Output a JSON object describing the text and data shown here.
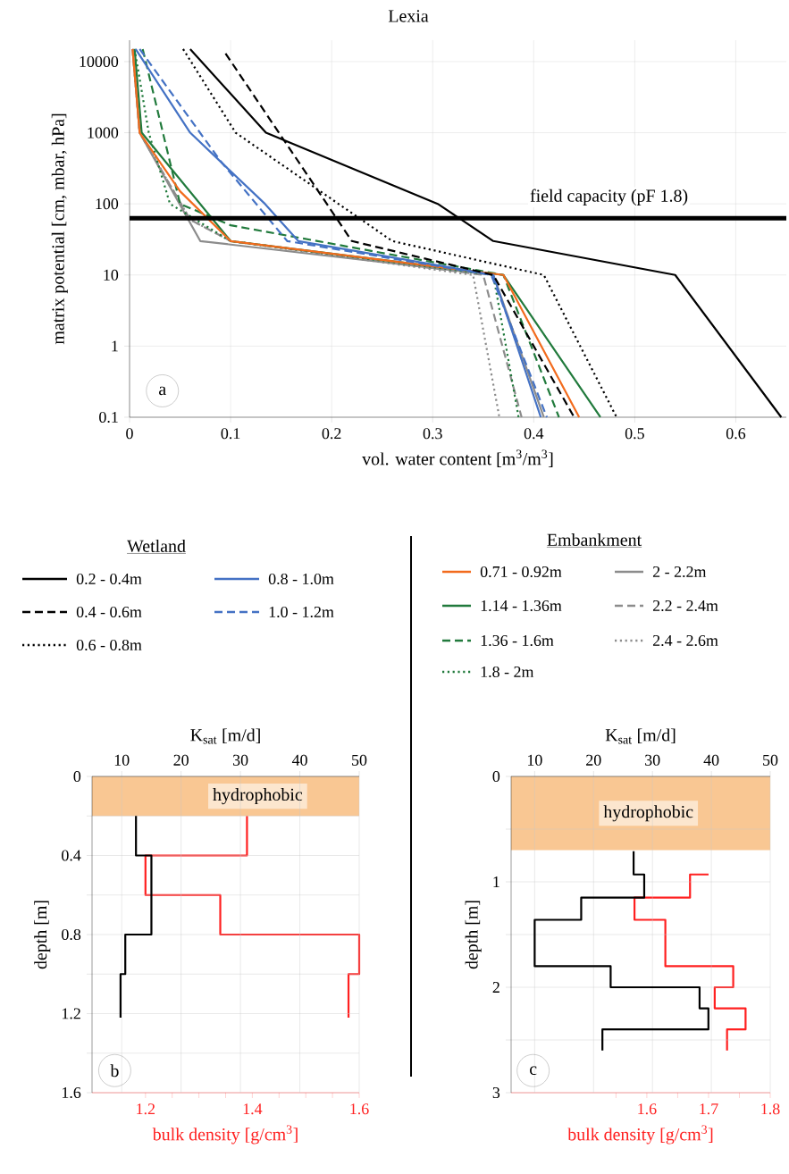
{
  "chart_data": [
    {
      "type": "line",
      "title": "Lexia",
      "xlabel": "vol. water content [m$^{3}$/m$^{3}$]",
      "ylabel": "matrix potential [cm, mbar, hPa]",
      "xlim": [
        0,
        0.65
      ],
      "xticks": [
        0,
        0.1,
        0.2,
        0.3,
        0.4,
        0.5,
        0.6
      ],
      "ylim": [
        0.1,
        20000
      ],
      "yticks": [
        0.1,
        1,
        10,
        100,
        1000,
        10000
      ],
      "log": "y",
      "grid": true,
      "legend": "bottom",
      "ref_lines": [
        {
          "axis": "y",
          "value": 63,
          "label": "field capacity (pF 1.8)",
          "color": "#000000"
        }
      ],
      "annotations": [
        "a"
      ],
      "series": [
        {
          "name": "0.2 - 0.4m",
          "color": "#000000",
          "line_style": "solid",
          "x": [
            0.06,
            0.135,
            0.305,
            0.36,
            0.54,
            0.645
          ],
          "values": [
            15000,
            1000,
            100,
            30,
            10,
            0.1
          ]
        },
        {
          "name": "0.4 - 0.6m",
          "color": "#000000",
          "line_style": "dashed",
          "x": [
            0.095,
            0.22,
            0.36,
            0.44
          ],
          "values": [
            13000,
            30,
            10,
            0.1
          ]
        },
        {
          "name": "0.6 - 0.8m",
          "color": "#000000",
          "line_style": "dotted",
          "x": [
            0.053,
            0.105,
            0.26,
            0.41,
            0.482
          ],
          "values": [
            15000,
            1000,
            30,
            10,
            0.1
          ]
        },
        {
          "name": "0.8 - 1.0m",
          "color": "#4472c4",
          "line_style": "solid",
          "x": [
            0.006,
            0.06,
            0.134,
            0.167,
            0.36,
            0.407
          ],
          "values": [
            15000,
            1000,
            100,
            30,
            10,
            0.1
          ]
        },
        {
          "name": "1.0 - 1.2m",
          "color": "#4472c4",
          "line_style": "dashed",
          "x": [
            0.01,
            0.09,
            0.156,
            0.358,
            0.413
          ],
          "values": [
            15000,
            400,
            30,
            10,
            0.1
          ]
        },
        {
          "name": "0.71 - 0.92m",
          "color": "#f26b1d",
          "line_style": "solid",
          "x": [
            0.003,
            0.01,
            0.05,
            0.1,
            0.37,
            0.445
          ],
          "values": [
            15000,
            1000,
            150,
            30,
            10,
            0.1
          ]
        },
        {
          "name": "1.14 - 1.36m",
          "color": "#217a3c",
          "line_style": "solid",
          "x": [
            0.005,
            0.012,
            0.1,
            0.37,
            0.466
          ],
          "values": [
            15000,
            1000,
            30,
            10,
            0.1
          ]
        },
        {
          "name": "1.36 - 1.6m",
          "color": "#217a3c",
          "line_style": "dashed",
          "x": [
            0.013,
            0.033,
            0.05,
            0.1,
            0.37,
            0.425
          ],
          "values": [
            15000,
            1000,
            100,
            50,
            10,
            0.1
          ]
        },
        {
          "name": "1.8 - 2m",
          "color": "#217a3c",
          "line_style": "dotted",
          "x": [
            0.005,
            0.019,
            0.04,
            0.1,
            0.36,
            0.385
          ],
          "values": [
            15000,
            1000,
            100,
            30,
            10,
            0.1
          ]
        },
        {
          "name": "2 - 2.2m",
          "color": "#8c8c8c",
          "line_style": "solid",
          "x": [
            0.003,
            0.01,
            0.07,
            0.36,
            0.41
          ],
          "values": [
            15000,
            1000,
            30,
            10,
            0.1
          ]
        },
        {
          "name": "2.2 - 2.4m",
          "color": "#8c8c8c",
          "line_style": "dashed",
          "x": [
            0.003,
            0.01,
            0.06,
            0.1,
            0.35,
            0.388
          ],
          "values": [
            15000,
            1000,
            60,
            30,
            10,
            0.1
          ]
        },
        {
          "name": "2.4 - 2.6m",
          "color": "#8c8c8c",
          "line_style": "dotted",
          "x": [
            0.003,
            0.01,
            0.06,
            0.1,
            0.34,
            0.366
          ],
          "values": [
            15000,
            1000,
            60,
            30,
            10,
            0.1
          ]
        }
      ]
    },
    {
      "type": "line",
      "title": "Wetland",
      "xlabel": "bulk density [g/cm$^{3}$]",
      "x2label": "K$_{sat}$  [m/d]",
      "ylabel": "depth [m]",
      "xlim": [
        1.1,
        1.6
      ],
      "xticks": [
        1.2,
        {
          "value": 1.25,
          "label": null
        },
        {
          "value": 1.3,
          "label": null
        },
        {
          "value": 1.35,
          "label": null
        },
        1.4,
        {
          "value": 1.45,
          "label": null
        },
        {
          "value": 1.5,
          "label": null
        },
        {
          "value": 1.55,
          "label": null
        },
        1.6
      ],
      "x2lim": [
        5,
        50
      ],
      "x2ticks": [
        10,
        20,
        30,
        40,
        50
      ],
      "ylim": [
        1.6,
        0
      ],
      "yticks": [
        0,
        {
          "value": 0.2,
          "label": null
        },
        0.4,
        {
          "value": 0.6,
          "label": null
        },
        0.8,
        {
          "value": 1.0,
          "label": null
        },
        1.2,
        {
          "value": 1.4,
          "label": null
        },
        1.6
      ],
      "grid": true,
      "bands": [
        {
          "axis": "y",
          "from": 0,
          "to": 0.2,
          "label": "hydrophobic",
          "color": "#f9c793"
        }
      ],
      "annotations": [
        "b"
      ],
      "series": [
        {
          "color": "#000000",
          "axis": "x2",
          "x": [
            12.4,
            12.4,
            15,
            15,
            10.6,
            10.6,
            9.8,
            9.8
          ],
          "values": [
            0.2,
            0.4,
            0.4,
            0.8,
            0.8,
            1.0,
            1.0,
            1.22
          ]
        },
        {
          "color": "#ff2020",
          "x": [
            1.39,
            1.39,
            1.2,
            1.2,
            1.34,
            1.34,
            1.6,
            1.6,
            1.58,
            1.58
          ],
          "values": [
            0.2,
            0.4,
            0.4,
            0.6,
            0.6,
            0.8,
            0.8,
            1.0,
            1.0,
            1.22
          ]
        }
      ]
    },
    {
      "type": "line",
      "title": "Embankment",
      "xlabel": "bulk density [g/cm$^{3}$]",
      "x2label": "K$_{sat}$  [m/d]",
      "ylabel": "depth [m]",
      "xlim": [
        1.38,
        1.8
      ],
      "xticks": [
        {
          "value": 1.55,
          "label": null
        },
        1.6,
        {
          "value": 1.65,
          "label": null
        },
        1.7,
        {
          "value": 1.75,
          "label": null
        },
        1.8
      ],
      "x2lim": [
        6,
        50
      ],
      "x2ticks": [
        10,
        20,
        30,
        40,
        50
      ],
      "ylim": [
        3,
        0
      ],
      "yticks": [
        0,
        {
          "value": 0.5,
          "label": null
        },
        1,
        {
          "value": 1.5,
          "label": null
        },
        2,
        {
          "value": 2.5,
          "label": null
        },
        3
      ],
      "grid": true,
      "bands": [
        {
          "axis": "y",
          "from": 0,
          "to": 0.7,
          "label": "hydrophobic",
          "color": "#f9c793"
        }
      ],
      "annotations": [
        "c"
      ],
      "series": [
        {
          "color": "#000000",
          "axis": "x2",
          "x": [
            26.8,
            26.8,
            28.6,
            28.6,
            17.9,
            17.9,
            10,
            10,
            22.9,
            22.9,
            38,
            38,
            39.5,
            39.5,
            21.5,
            21.5
          ],
          "values": [
            0.71,
            0.93,
            0.93,
            1.15,
            1.15,
            1.36,
            1.36,
            1.8,
            1.8,
            2.0,
            2.0,
            2.2,
            2.2,
            2.4,
            2.4,
            2.6
          ]
        },
        {
          "color": "#ff2020",
          "x": [
            1.7,
            1.67,
            1.67,
            1.58,
            1.58,
            1.63,
            1.63,
            1.74,
            1.74,
            1.71,
            1.71,
            1.76,
            1.76,
            1.73,
            1.73
          ],
          "values": [
            0.93,
            0.93,
            1.15,
            1.15,
            1.36,
            1.36,
            1.8,
            1.8,
            2.0,
            2.0,
            2.2,
            2.2,
            2.4,
            2.4,
            2.6
          ]
        }
      ]
    }
  ]
}
